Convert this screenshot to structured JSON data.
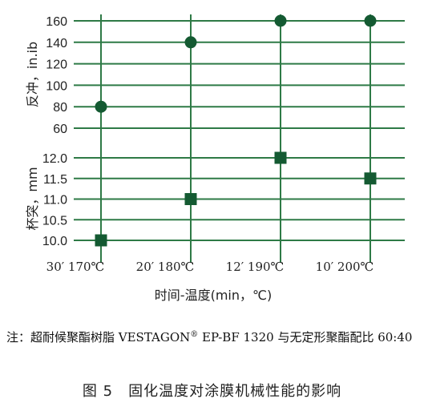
{
  "chart_data": {
    "type": "scatter",
    "categories": [
      "30′  170℃",
      "20′  180℃",
      "12′  190℃",
      "10′  200℃"
    ],
    "xlabel": "时间-温度(min，℃)",
    "panels": [
      {
        "ylabel": "反冲，in.ib",
        "yticks": [
          60,
          80,
          100,
          120,
          140,
          160
        ],
        "ylim": [
          60,
          160
        ],
        "marker": "circle",
        "values": [
          80,
          140,
          160,
          160
        ]
      },
      {
        "ylabel": "杯突，mm",
        "yticks": [
          10.0,
          10.5,
          11.0,
          11.5,
          12.0
        ],
        "ylim": [
          10.0,
          12.0
        ],
        "marker": "square",
        "values": [
          10.0,
          11.0,
          12.0,
          11.5
        ]
      }
    ],
    "colors": {
      "line": "#2e7a46",
      "marker": "#145a32"
    }
  },
  "note": {
    "prefix": "注：超耐候聚酯树脂 VESTAGON",
    "reg": "®",
    "suffix": " EP-BF 1320 与无定形聚酯配比 60:40"
  },
  "caption": "图 5　固化温度对涂膜机械性能的影响"
}
